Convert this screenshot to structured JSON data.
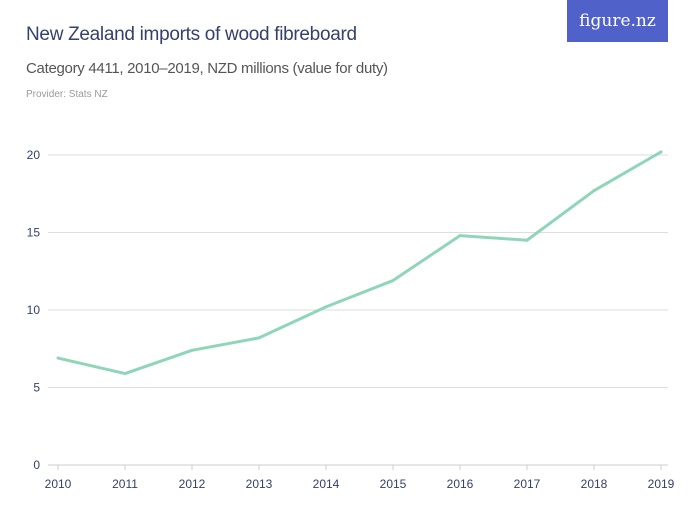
{
  "logo": "figure.nz",
  "chart_data": {
    "type": "line",
    "title": "New Zealand imports of wood fibreboard",
    "subtitle": "Category 4411, 2010–2019, NZD millions (value for duty)",
    "provider": "Provider: Stats NZ",
    "categories": [
      "2010",
      "2011",
      "2012",
      "2013",
      "2014",
      "2015",
      "2016",
      "2017",
      "2018",
      "2019"
    ],
    "series": [
      {
        "values": [
          6.9,
          5.9,
          7.4,
          8.2,
          10.2,
          11.9,
          14.8,
          14.5,
          17.7,
          20.2
        ],
        "color": "#8fd6b8"
      }
    ],
    "yticks": [
      0,
      5,
      10,
      15,
      20
    ],
    "ylim": [
      0,
      20
    ],
    "grid": true,
    "xlabel": "",
    "ylabel": ""
  }
}
